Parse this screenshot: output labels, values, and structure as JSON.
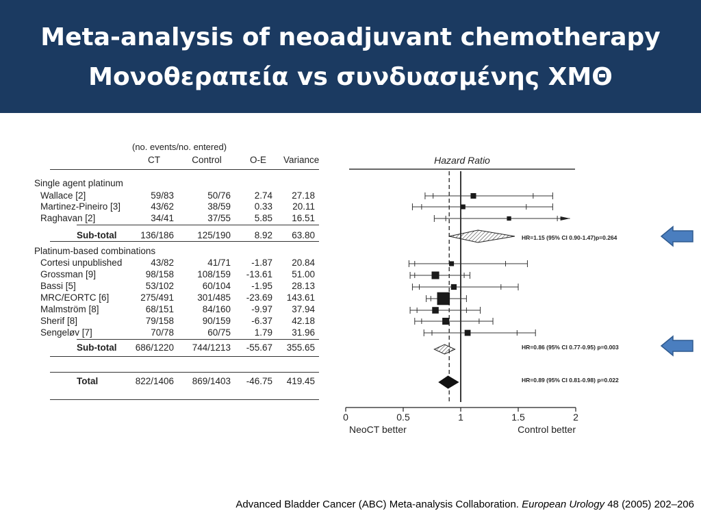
{
  "slide": {
    "title_line1": "Meta-analysis of neoadjuvant chemotherapy",
    "title_line2": "Μονοθεραπεία vs συνδυασμένης ΧΜΘ",
    "footer_text": "Advanced Bladder Cancer (ABC) Meta-analysis Collaboration. ",
    "footer_journal": "European Urology",
    "footer_ref": " 48 (2005) 202–206"
  },
  "table": {
    "events_header": "(no. events/no. entered)",
    "col_ct": "CT",
    "col_control": "Control",
    "col_oe": "O-E",
    "col_variance": "Variance",
    "group1": "Single agent platinum",
    "group2": "Platinum-based combinations",
    "rows": [
      {
        "name": "Wallace [2]",
        "ct": "59/83",
        "control": "50/76",
        "oe": "2.74",
        "variance": "27.18"
      },
      {
        "name": "Martinez-Pineiro [3]",
        "ct": "43/62",
        "control": "38/59",
        "oe": "0.33",
        "variance": "20.11"
      },
      {
        "name": "Raghavan [2]",
        "ct": "34/41",
        "control": "37/55",
        "oe": "5.85",
        "variance": "16.51"
      },
      {
        "name": "Sub-total",
        "ct": "136/186",
        "control": "125/190",
        "oe": "8.92",
        "variance": "63.80"
      },
      {
        "name": "Cortesi unpublished",
        "ct": "43/82",
        "control": "41/71",
        "oe": "-1.87",
        "variance": "20.84"
      },
      {
        "name": "Grossman [9]",
        "ct": "98/158",
        "control": "108/159",
        "oe": "-13.61",
        "variance": "51.00"
      },
      {
        "name": "Bassi [5]",
        "ct": "53/102",
        "control": "60/104",
        "oe": "-1.95",
        "variance": "28.13"
      },
      {
        "name": "MRC/EORTC [6]",
        "ct": "275/491",
        "control": "301/485",
        "oe": "-23.69",
        "variance": "143.61"
      },
      {
        "name": "Malmström [8]",
        "ct": "68/151",
        "control": "84/160",
        "oe": "-9.97",
        "variance": "37.94"
      },
      {
        "name": "Sherif [8]",
        "ct": "79/158",
        "control": "90/159",
        "oe": "-6.37",
        "variance": "42.18"
      },
      {
        "name": "Sengeløv [7]",
        "ct": "70/78",
        "control": "60/75",
        "oe": "1.79",
        "variance": "31.96"
      },
      {
        "name": "Sub-total",
        "ct": "686/1220",
        "control": "744/1213",
        "oe": "-55.67",
        "variance": "355.65"
      },
      {
        "name": "Total",
        "ct": "822/1406",
        "control": "869/1403",
        "oe": "-46.75",
        "variance": "419.45"
      }
    ]
  },
  "chart_data": {
    "type": "scatter",
    "title": "Hazard Ratio",
    "xlim": [
      0,
      2
    ],
    "xticks": [
      "0",
      "0.5",
      "1",
      "1.5",
      "2"
    ],
    "x_left_label": "NeoCT better",
    "x_right_label": "Control better",
    "reference_line": 1,
    "overall_line": 0.9,
    "studies": [
      {
        "name": "Wallace [2]",
        "hr": 1.11,
        "ci99": [
          0.69,
          1.8
        ],
        "ci95": [
          0.76,
          1.63
        ],
        "weight": 27.18
      },
      {
        "name": "Martinez-Pineiro [3]",
        "hr": 1.02,
        "ci99": [
          0.58,
          1.8
        ],
        "ci95": [
          0.66,
          1.57
        ],
        "weight": 20.11
      },
      {
        "name": "Raghavan [2]",
        "hr": 1.42,
        "ci99": [
          0.77,
          1.95
        ],
        "ci95": [
          0.87,
          1.84
        ],
        "weight": 16.51
      },
      {
        "name": "Cortesi unpublished",
        "hr": 0.92,
        "ci99": [
          0.55,
          1.58
        ],
        "ci95": [
          0.6,
          1.39
        ],
        "weight": 20.84
      },
      {
        "name": "Grossman [9]",
        "hr": 0.78,
        "ci99": [
          0.56,
          1.08
        ],
        "ci95": [
          0.6,
          1.03
        ],
        "weight": 51.0
      },
      {
        "name": "Bassi [5]",
        "hr": 0.94,
        "ci99": [
          0.58,
          1.5
        ],
        "ci95": [
          0.64,
          1.35
        ],
        "weight": 28.13
      },
      {
        "name": "MRC/EORTC [6]",
        "hr": 0.85,
        "ci99": [
          0.7,
          1.05
        ],
        "ci95": [
          0.74,
          1.0
        ],
        "weight": 143.61
      },
      {
        "name": "Malmström [8]",
        "hr": 0.78,
        "ci99": [
          0.56,
          1.17
        ],
        "ci95": [
          0.62,
          1.05
        ],
        "weight": 37.94
      },
      {
        "name": "Sherif [8]",
        "hr": 0.87,
        "ci99": [
          0.6,
          1.28
        ],
        "ci95": [
          0.66,
          1.16
        ],
        "weight": 42.18
      },
      {
        "name": "Sengeløv [7]",
        "hr": 1.06,
        "ci99": [
          0.68,
          1.65
        ],
        "ci95": [
          0.75,
          1.49
        ],
        "weight": 31.96
      }
    ],
    "pooled": [
      {
        "name": "Sub-total (single agent)",
        "hr": 1.15,
        "ci": [
          0.9,
          1.47
        ],
        "label": "HR=1.15 (95% CI 0.90-1.47)p=0.264",
        "arrow": true
      },
      {
        "name": "Sub-total (combinations)",
        "hr": 0.86,
        "ci": [
          0.77,
          0.95
        ],
        "label": "HR=0.86 (95% CI 0.77-0.95) p=0.003",
        "arrow": true
      },
      {
        "name": "Total",
        "hr": 0.89,
        "ci": [
          0.81,
          0.98
        ],
        "label": "HR=0.89 (95% CI 0.81-0.98) p=0.022",
        "arrow": false
      }
    ],
    "colors": {
      "marker": "#1a1a1a",
      "arrow_fill": "#4a7ebf",
      "arrow_stroke": "#2f5a8f"
    }
  }
}
